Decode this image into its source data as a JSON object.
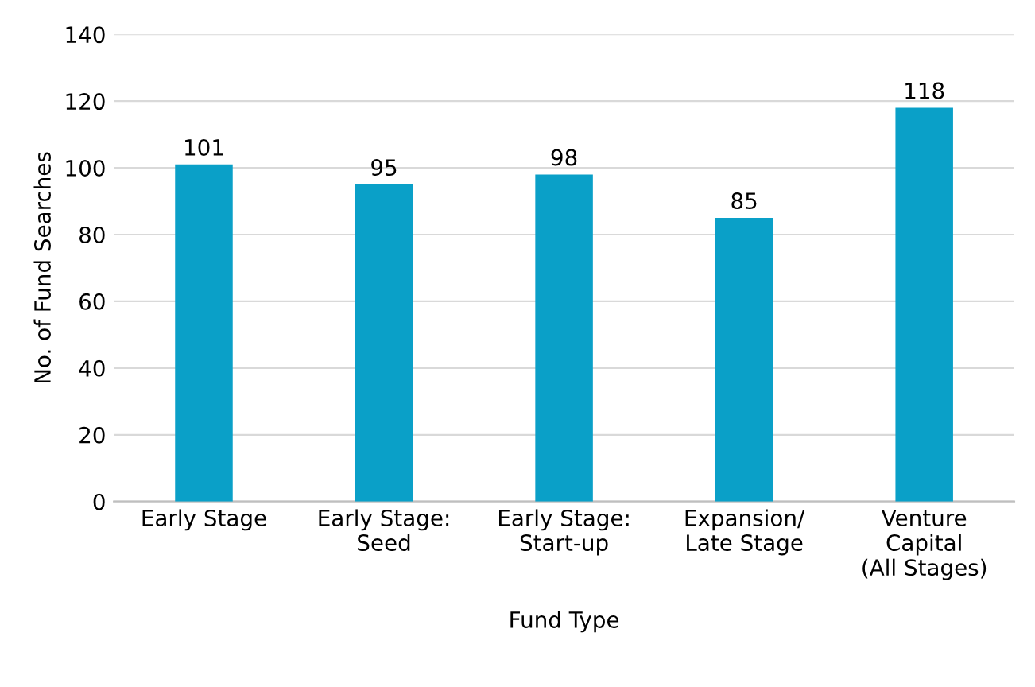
{
  "chart_data": {
    "type": "bar",
    "categories": [
      "Early Stage",
      "Early Stage:\nSeed",
      "Early Stage:\nStart-up",
      "Expansion/\nLate Stage",
      "Venture\nCapital\n(All Stages)"
    ],
    "values": [
      101,
      95,
      98,
      85,
      118
    ],
    "color": "#0aa0c8",
    "xlabel": "Fund Type",
    "ylabel": "No. of Fund Searches",
    "ylim": [
      0,
      140
    ],
    "yticks": [
      0,
      20,
      40,
      60,
      80,
      100,
      120,
      140
    ],
    "grid": "y",
    "data_labels": true
  }
}
